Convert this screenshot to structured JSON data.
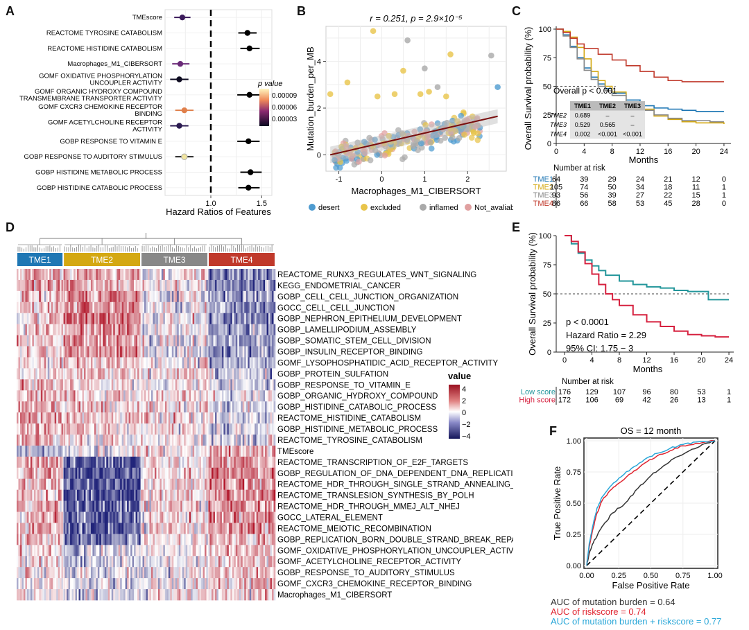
{
  "panel_labels": {
    "a": "A",
    "b": "B",
    "c": "C",
    "d": "D",
    "e": "E",
    "f": "F"
  },
  "colors": {
    "tme1": "#1f77b4",
    "tme2": "#d4a812",
    "tme3": "#888888",
    "tme4": "#c0392b",
    "low": "#23969b",
    "high": "#d6213f",
    "f_mut": "#333333",
    "f_risk": "#e0242f",
    "f_both": "#2aa7d8",
    "hm_pos": "#b2182b",
    "hm_neg": "#21247a"
  },
  "chart_data": [
    {
      "panel": "A",
      "type": "scatter",
      "subtype": "forest",
      "xlabel": "Hazard Ratios of Features",
      "xticks": [
        "1.0",
        "1.5"
      ],
      "xlim": [
        0.55,
        1.6
      ],
      "ref_line": 1.0,
      "legend_title": "p value",
      "legend_ticks": [
        "0.00009",
        "0.00006",
        "0.00003"
      ],
      "features": [
        {
          "name": "TMEscore",
          "hr": 0.72,
          "lo": 0.64,
          "hi": 0.8,
          "color": "#3b1a5a"
        },
        {
          "name": "REACTOME TYROSINE CATABOLISM",
          "hr": 1.36,
          "lo": 1.27,
          "hi": 1.45,
          "color": "#000000"
        },
        {
          "name": "REACTOME HISTIDINE CATABOLISM",
          "hr": 1.38,
          "lo": 1.29,
          "hi": 1.48,
          "color": "#000000"
        },
        {
          "name": "Macrophages_M1_CIBERSORT",
          "hr": 0.7,
          "lo": 0.62,
          "hi": 0.79,
          "color": "#6a2a78"
        },
        {
          "name": "GOMF OXIDATIVE PHOSPHORYLATION\nUNCOUPLER ACTIVITY",
          "hr": 0.69,
          "lo": 0.6,
          "hi": 0.78,
          "color": "#0d0a20"
        },
        {
          "name": "GOMF ORGANIC HYDROXY COMPOUND\nTRANSMEMBRANE TRANSPORTER ACTIVITY",
          "hr": 1.38,
          "lo": 1.26,
          "hi": 1.5,
          "color": "#000000"
        },
        {
          "name": "GOMF CXCR3 CHEMOKINE RECEPTOR\nBINDING",
          "hr": 0.74,
          "lo": 0.65,
          "hi": 0.83,
          "color": "#e07f4a"
        },
        {
          "name": "GOMF ACETYLCHOLINE RECEPTOR\nACTIVITY",
          "hr": 0.69,
          "lo": 0.6,
          "hi": 0.78,
          "color": "#2a1a50"
        },
        {
          "name": "GOBP RESPONSE TO VITAMIN E",
          "hr": 1.37,
          "lo": 1.26,
          "hi": 1.48,
          "color": "#000000"
        },
        {
          "name": "GOBP RESPONSE TO AUDITORY STIMULUS",
          "hr": 0.74,
          "lo": 0.65,
          "hi": 0.83,
          "color": "#f2e6a0"
        },
        {
          "name": "GOBP HISTIDINE METABOLIC PROCESS",
          "hr": 1.39,
          "lo": 1.29,
          "hi": 1.5,
          "color": "#000000"
        },
        {
          "name": "GOBP HISTIDINE CATABOLIC PROCESS",
          "hr": 1.37,
          "lo": 1.27,
          "hi": 1.48,
          "color": "#000000"
        }
      ]
    },
    {
      "panel": "B",
      "type": "scatter",
      "title": "r = 0.251,  p = 2.9×10⁻⁵",
      "xlabel": "Macrophages_M1_CIBERSORT",
      "ylabel": "Mutation_burden_per_MB",
      "xlim": [
        -1.3,
        2.9
      ],
      "ylim": [
        -0.7,
        5.5
      ],
      "xticks": [
        "-1",
        "0",
        "1",
        "2"
      ],
      "yticks": [
        "0",
        "2",
        "4"
      ],
      "fit": {
        "x": [
          -1.2,
          2.7
        ],
        "y": [
          0.0,
          1.65
        ]
      },
      "legend": [
        {
          "name": "desert",
          "color": "#4e9bd0"
        },
        {
          "name": "excluded",
          "color": "#e8c44a"
        },
        {
          "name": "inflamed",
          "color": "#a9a9a9"
        },
        {
          "name": "Not_avaliable",
          "color": "#e0a0a0"
        }
      ],
      "outliers": [
        [
          -0.2,
          5.3,
          1
        ],
        [
          0.6,
          4.9,
          2
        ],
        [
          1.6,
          4.3,
          1
        ],
        [
          2.55,
          4.25,
          2
        ],
        [
          2.7,
          2.9,
          0
        ],
        [
          0.5,
          3.6,
          1
        ],
        [
          1.0,
          3.7,
          2
        ],
        [
          1.3,
          2.9,
          2
        ],
        [
          -0.8,
          3.1,
          1
        ],
        [
          -1.2,
          2.6,
          1
        ],
        [
          1.1,
          2.7,
          1
        ],
        [
          0.3,
          2.6,
          1
        ],
        [
          -0.1,
          2.5,
          1
        ],
        [
          0.9,
          2.6,
          1
        ],
        [
          1.5,
          2.5,
          1
        ]
      ]
    },
    {
      "panel": "C",
      "type": "line",
      "subtype": "kaplan-meier",
      "ylabel": "Overall Survival probability (%)",
      "xlabel": "Months",
      "xticks": [
        "0",
        "4",
        "8",
        "12",
        "16",
        "20",
        "24"
      ],
      "yticks": [
        "100",
        "75",
        "50",
        "25",
        "0"
      ],
      "annotation": "Overall p < 0.001",
      "table": {
        "headers": [
          "",
          "TME1",
          "TME2",
          "TME3"
        ],
        "rows": [
          [
            "TME2",
            "0.689",
            "–",
            "–"
          ],
          [
            "TME3",
            "0.529",
            "0.565",
            "–"
          ],
          [
            "TME4",
            "0.002",
            "<0.001",
            "<0.001"
          ]
        ]
      },
      "risk_title": "Number at risk",
      "risk": [
        {
          "name": "TME1",
          "values": [
            "64",
            "39",
            "29",
            "24",
            "21",
            "12",
            "0"
          ]
        },
        {
          "name": "TME2",
          "values": [
            "105",
            "74",
            "50",
            "34",
            "18",
            "11",
            "1"
          ]
        },
        {
          "name": "TME3",
          "values": [
            "93",
            "56",
            "39",
            "27",
            "22",
            "15",
            "1"
          ]
        },
        {
          "name": "TME4",
          "values": [
            "86",
            "66",
            "58",
            "53",
            "45",
            "28",
            "0"
          ]
        }
      ],
      "series": [
        {
          "name": "TME1",
          "x": [
            0,
            1,
            2,
            3,
            4,
            5,
            6,
            7,
            8,
            10,
            12,
            14,
            16,
            18,
            20,
            22,
            24
          ],
          "y": [
            100,
            95,
            85,
            75,
            66,
            58,
            52,
            48,
            44,
            38,
            33,
            31,
            30,
            29,
            28,
            28,
            28
          ]
        },
        {
          "name": "TME2",
          "x": [
            0,
            1,
            2,
            3,
            4,
            5,
            6,
            7,
            8,
            10,
            12,
            14,
            16,
            18,
            20,
            22,
            24
          ],
          "y": [
            100,
            98,
            93,
            84,
            74,
            63,
            55,
            50,
            45,
            36,
            30,
            24,
            21,
            19,
            18,
            18,
            17
          ]
        },
        {
          "name": "TME3",
          "x": [
            0,
            1,
            2,
            3,
            4,
            5,
            6,
            7,
            8,
            10,
            12,
            14,
            16,
            18,
            20,
            22,
            24
          ],
          "y": [
            100,
            94,
            84,
            74,
            64,
            56,
            50,
            46,
            42,
            35,
            29,
            25,
            22,
            20,
            20,
            19,
            19
          ]
        },
        {
          "name": "TME4",
          "x": [
            0,
            1,
            2,
            3,
            4,
            6,
            8,
            10,
            12,
            14,
            16,
            18,
            20,
            22,
            24
          ],
          "y": [
            100,
            97,
            92,
            87,
            83,
            78,
            73,
            68,
            63,
            58,
            55,
            54,
            54,
            54,
            54
          ]
        }
      ]
    },
    {
      "panel": "D",
      "type": "heatmap",
      "groups": [
        {
          "name": "TME1",
          "frac": 0.18,
          "color": "#1f77b4"
        },
        {
          "name": "TME2",
          "frac": 0.3,
          "color": "#d4a812"
        },
        {
          "name": "TME3",
          "frac": 0.26,
          "color": "#888888"
        },
        {
          "name": "TME4",
          "frac": 0.26,
          "color": "#c0392b"
        }
      ],
      "legend_title": "value",
      "legend_ticks": [
        "4",
        "2",
        "0",
        "−2",
        "−4"
      ],
      "rows": [
        {
          "name": "REACTOME_RUNX3_REGULATES_WNT_SIGNALING",
          "means": [
            0.8,
            0.8,
            0.2,
            -1.2
          ]
        },
        {
          "name": "KEGG_ENDOMETRIAL_CANCER",
          "means": [
            0.7,
            1.0,
            0.0,
            -1.4
          ]
        },
        {
          "name": "GOBP_CELL_CELL_JUNCTION_ORGANIZATION",
          "means": [
            0.6,
            1.4,
            -0.1,
            -1.3
          ]
        },
        {
          "name": "GOCC_CELL_CELL_JUNCTION",
          "means": [
            0.6,
            1.3,
            -0.1,
            -1.3
          ]
        },
        {
          "name": "GOBP_NEPHRON_EPITHELIUM_DEVELOPMENT",
          "means": [
            0.5,
            1.5,
            -0.2,
            -1.4
          ]
        },
        {
          "name": "GOBP_LAMELLIPODIUM_ASSEMBLY",
          "means": [
            0.5,
            1.2,
            0.0,
            -1.3
          ]
        },
        {
          "name": "GOBP_SOMATIC_STEM_CELL_DIVISION",
          "means": [
            0.3,
            1.2,
            -0.1,
            -1.1
          ]
        },
        {
          "name": "GOBP_INSULIN_RECEPTOR_BINDING",
          "means": [
            0.4,
            1.3,
            -0.2,
            -1.2
          ]
        },
        {
          "name": "GOMF_LYSOPHOSPHATIDIC_ACID_RECEPTOR_ACTIVITY",
          "means": [
            0.2,
            0.8,
            0.1,
            -0.8
          ]
        },
        {
          "name": "GOBP_PROTEIN_SULFATION",
          "means": [
            0.3,
            0.6,
            0.2,
            -0.6
          ]
        },
        {
          "name": "GOBP_RESPONSE_TO_VITAMIN_E",
          "means": [
            0.9,
            0.3,
            0.2,
            -0.4
          ]
        },
        {
          "name": "GOBP_ORGANIC_HYDROXY_COMPOUND",
          "means": [
            0.9,
            0.4,
            0.3,
            -0.3
          ]
        },
        {
          "name": "GOBP_HISTIDINE_CATABOLIC_PROCESS",
          "means": [
            1.0,
            0.5,
            0.3,
            -0.4
          ]
        },
        {
          "name": "REACTOME_HISTIDINE_CATABOLISM",
          "means": [
            1.0,
            0.5,
            0.3,
            -0.4
          ]
        },
        {
          "name": "GOBP_HISTIDINE_METABOLIC_PROCESS",
          "means": [
            1.0,
            0.5,
            0.3,
            -0.4
          ]
        },
        {
          "name": "REACTOME_TYROSINE_CATABOLISM",
          "means": [
            0.9,
            0.4,
            0.2,
            -0.3
          ]
        },
        {
          "name": "TMEscore",
          "means": [
            -0.5,
            -0.2,
            0.1,
            0.8
          ]
        },
        {
          "name": "REACTOME_TRANSCRIPTION_OF_E2F_TARGETS",
          "means": [
            0.9,
            -1.9,
            0.4,
            1.2
          ]
        },
        {
          "name": "GOBP_REGULATION_OF_DNA_DEPENDENT_DNA_REPLICATION",
          "means": [
            0.9,
            -2.1,
            0.4,
            1.3
          ]
        },
        {
          "name": "REACTOME_HDR_THROUGH_SINGLE_STRAND_ANNEALING_SSA",
          "means": [
            0.8,
            -2.0,
            0.3,
            1.2
          ]
        },
        {
          "name": "REACTOME_TRANSLESION_SYNTHESIS_BY_POLH",
          "means": [
            0.8,
            -2.0,
            0.3,
            1.2
          ]
        },
        {
          "name": "REACTOME_HDR_THROUGH_MMEJ_ALT_NHEJ",
          "means": [
            0.8,
            -1.9,
            0.3,
            1.2
          ]
        },
        {
          "name": "GOCC_LATERAL_ELEMENT",
          "means": [
            0.7,
            -1.8,
            0.3,
            1.1
          ]
        },
        {
          "name": "REACTOME_MEIOTIC_RECOMBINATION",
          "means": [
            0.8,
            -1.9,
            0.3,
            1.2
          ]
        },
        {
          "name": "GOBP_REPLICATION_BORN_DOUBLE_STRAND_BREAK_REPAIR",
          "means": [
            0.7,
            -1.7,
            0.3,
            1.0
          ]
        },
        {
          "name": "GOMF_OXIDATIVE_PHOSPHORYLATION_UNCOUPLER_ACTIVITY",
          "means": [
            0.4,
            -0.5,
            0.0,
            0.6
          ]
        },
        {
          "name": "GOMF_ACETYLCHOLINE_RECEPTOR_ACTIVITY",
          "means": [
            0.3,
            -0.4,
            0.0,
            0.5
          ]
        },
        {
          "name": "GOBP_RESPONSE_TO_AUDITORY_STIMULUS",
          "means": [
            0.3,
            -0.4,
            0.0,
            0.5
          ]
        },
        {
          "name": "GOMF_CXCR3_CHEMOKINE_RECEPTOR_BINDING",
          "means": [
            0.2,
            -0.5,
            0.1,
            0.6
          ]
        },
        {
          "name": "Macrophages_M1_CIBERSORT",
          "means": [
            0.2,
            -0.4,
            0.1,
            0.5
          ]
        }
      ]
    },
    {
      "panel": "E",
      "type": "line",
      "subtype": "kaplan-meier",
      "ylabel": "Overall Survival probability (%)",
      "xlabel": "Months",
      "xticks": [
        "0",
        "4",
        "8",
        "12",
        "16",
        "20",
        "24"
      ],
      "yticks": [
        "100",
        "75",
        "50",
        "25",
        "0"
      ],
      "annotations": [
        "p < 0.0001",
        "Hazard Ratio = 2.29",
        "95% CI: 1.75 − 3"
      ],
      "risk_title": "Number at risk",
      "risk": [
        {
          "name": "Low score",
          "values": [
            "176",
            "129",
            "107",
            "96",
            "80",
            "53",
            "1"
          ]
        },
        {
          "name": "High score",
          "values": [
            "172",
            "106",
            "69",
            "42",
            "26",
            "13",
            "1"
          ]
        }
      ],
      "series": [
        {
          "name": "Low score",
          "x": [
            0,
            1,
            2,
            3,
            4,
            5,
            6,
            8,
            10,
            12,
            14,
            16,
            18,
            20,
            21,
            22,
            24
          ],
          "y": [
            100,
            93,
            85,
            79,
            74,
            70,
            66,
            61,
            58,
            56,
            55,
            53,
            52,
            52,
            45,
            45,
            45
          ]
        },
        {
          "name": "High score",
          "x": [
            0,
            1,
            2,
            3,
            4,
            5,
            6,
            7,
            8,
            10,
            12,
            14,
            16,
            18,
            20,
            22,
            24
          ],
          "y": [
            100,
            95,
            86,
            76,
            67,
            58,
            50,
            45,
            40,
            32,
            26,
            22,
            18,
            15,
            14,
            13,
            13
          ]
        }
      ]
    },
    {
      "panel": "F",
      "type": "line",
      "subtype": "roc",
      "title": "OS = 12 month",
      "xlabel": "False Positive Rate",
      "ylabel": "True Positive Rate",
      "xticks": [
        "0.00",
        "0.25",
        "0.50",
        "0.75",
        "1.00"
      ],
      "yticks": [
        "1.00",
        "0.75",
        "0.50",
        "0.25",
        "0.00"
      ],
      "legend": [
        "AUC of  mutation burden  =  0.64",
        "AUC of  riskscore  =  0.74",
        "AUC of  mutation burden + riskscore  =  0.77"
      ],
      "series": [
        {
          "name": "mutation burden",
          "x": [
            0,
            0.02,
            0.05,
            0.1,
            0.15,
            0.2,
            0.3,
            0.4,
            0.5,
            0.6,
            0.7,
            0.8,
            0.9,
            1
          ],
          "y": [
            0,
            0.1,
            0.18,
            0.28,
            0.35,
            0.42,
            0.5,
            0.62,
            0.72,
            0.8,
            0.87,
            0.92,
            0.97,
            1
          ]
        },
        {
          "name": "riskscore",
          "x": [
            0,
            0.02,
            0.05,
            0.08,
            0.12,
            0.18,
            0.25,
            0.35,
            0.45,
            0.55,
            0.65,
            0.75,
            0.85,
            1
          ],
          "y": [
            0,
            0.15,
            0.3,
            0.42,
            0.52,
            0.6,
            0.66,
            0.74,
            0.82,
            0.88,
            0.92,
            0.96,
            0.98,
            1
          ]
        },
        {
          "name": "mutation burden + riskscore",
          "x": [
            0,
            0.02,
            0.05,
            0.08,
            0.12,
            0.18,
            0.25,
            0.35,
            0.45,
            0.55,
            0.65,
            0.75,
            0.85,
            1
          ],
          "y": [
            0,
            0.18,
            0.33,
            0.46,
            0.55,
            0.63,
            0.7,
            0.78,
            0.85,
            0.9,
            0.94,
            0.97,
            0.99,
            1
          ]
        }
      ]
    }
  ]
}
